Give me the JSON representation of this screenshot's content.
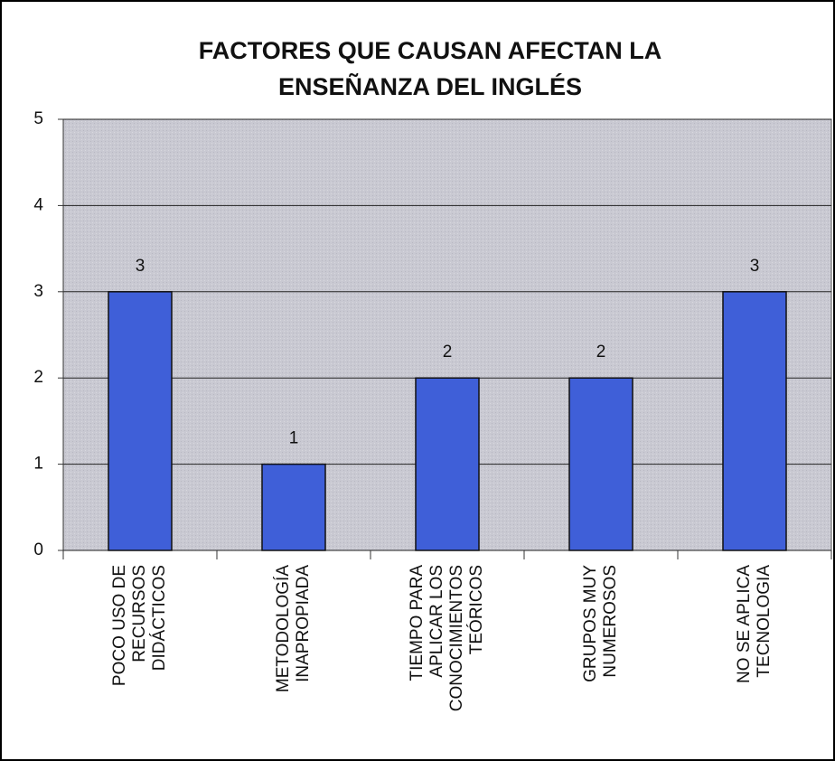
{
  "chart_data": {
    "type": "bar",
    "title": "FACTORES QUE CAUSAN AFECTAN LA ENSEÑANZA DEL INGLÉS",
    "categories": [
      "POCO USO DE RECURSOS DIDÁCTICOS",
      "METODOLOGÍA INAPROPIADA",
      "TIEMPO PARA APLICAR LOS CONOCIMIENTOS TEÓRICOS",
      "GRUPOS MUY NUMEROSOS",
      "NO SE APLICA TECNOLOGIA"
    ],
    "values": [
      3,
      1,
      2,
      2,
      3
    ],
    "color": "#3f5fd8",
    "ylim": [
      0,
      5
    ],
    "yticks": [
      0,
      1,
      2,
      3,
      4,
      5
    ],
    "grid": true
  }
}
